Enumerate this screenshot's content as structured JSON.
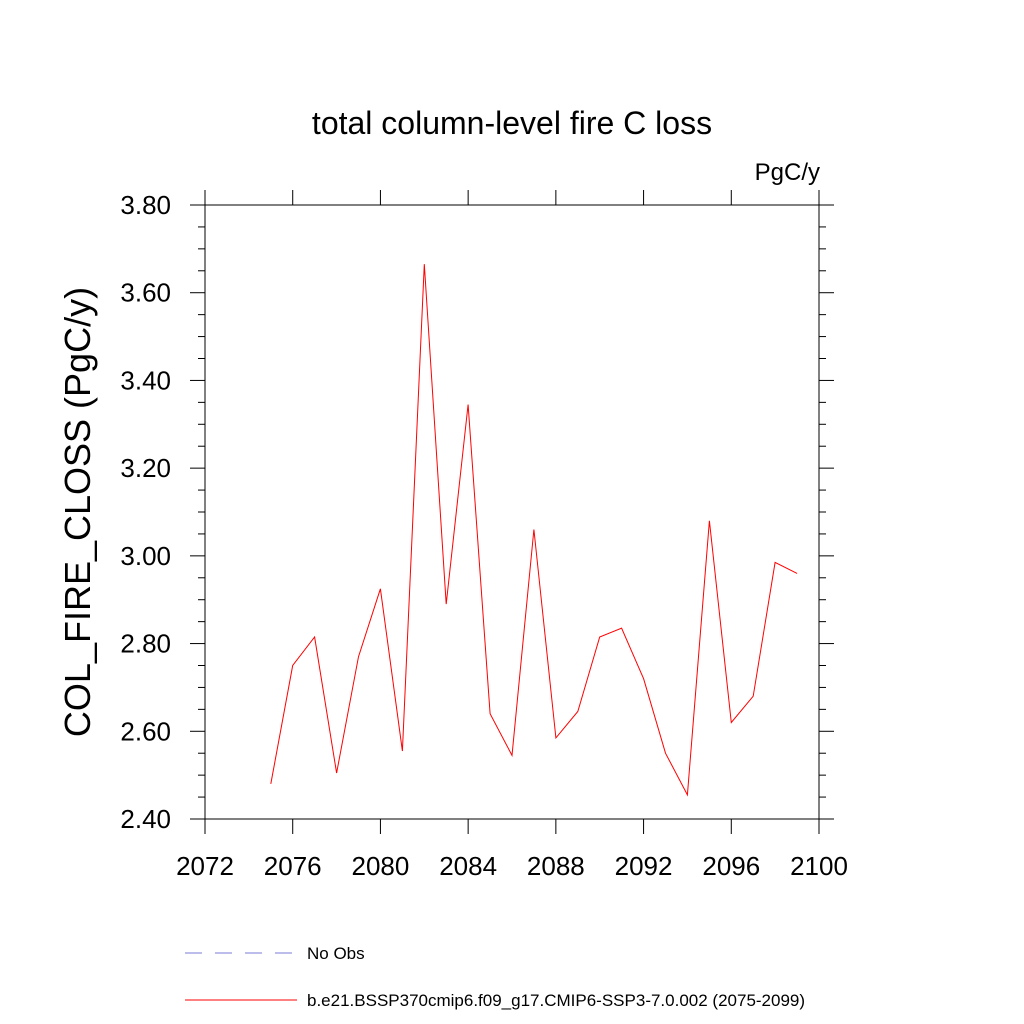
{
  "chart_data": {
    "type": "line",
    "title": "total column-level fire C loss",
    "units_label": "PgC/y",
    "xlabel": "",
    "ylabel": "COL_FIRE_CLOSS  (PgC/y)",
    "xlim": [
      2072,
      2100
    ],
    "ylim": [
      2.4,
      3.8
    ],
    "x_ticks": [
      2072,
      2076,
      2080,
      2084,
      2088,
      2092,
      2096,
      2100
    ],
    "x_tick_labels": [
      "2072",
      "2076",
      "2080",
      "2084",
      "2088",
      "2092",
      "2096",
      "2100"
    ],
    "y_ticks": [
      2.4,
      2.6,
      2.8,
      3.0,
      3.2,
      3.4,
      3.6,
      3.8
    ],
    "y_tick_labels": [
      "2.40",
      "2.60",
      "2.80",
      "3.00",
      "3.20",
      "3.40",
      "3.60",
      "3.80"
    ],
    "grid": false,
    "legend_position": "bottom",
    "series": [
      {
        "name": "b.e21.BSSP370cmip6.f09_g17.CMIP6-SSP3-7.0.002 (2075-2099)",
        "color": "#ff0000",
        "style": "solid",
        "x": [
          2075,
          2076,
          2077,
          2078,
          2079,
          2080,
          2081,
          2082,
          2083,
          2084,
          2085,
          2086,
          2087,
          2088,
          2089,
          2090,
          2091,
          2092,
          2093,
          2094,
          2095,
          2096,
          2097,
          2098,
          2099
        ],
        "values": [
          2.48,
          2.75,
          2.815,
          2.505,
          2.77,
          2.925,
          2.555,
          3.665,
          2.89,
          3.345,
          2.64,
          2.545,
          3.06,
          2.585,
          2.645,
          2.815,
          2.835,
          2.72,
          2.55,
          2.455,
          3.08,
          2.62,
          2.68,
          2.985,
          2.96
        ]
      }
    ],
    "legend": [
      {
        "label": "No Obs",
        "color": "#7b7bd8",
        "style": "dashed"
      },
      {
        "label": "b.e21.BSSP370cmip6.f09_g17.CMIP6-SSP3-7.0.002 (2075-2099)",
        "color": "#ff0000",
        "style": "solid"
      }
    ]
  }
}
